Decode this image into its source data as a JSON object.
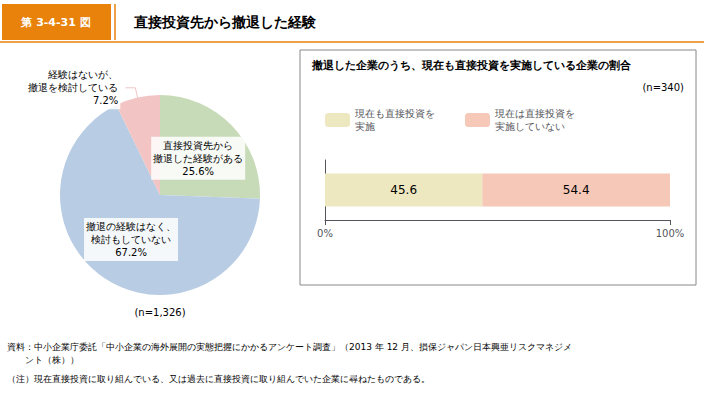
{
  "chart_data": [
    {
      "type": "pie",
      "title": "直接投資先から撤退した経験",
      "categories": [
        "直接投資先から\n撤退した経験がある",
        "撤退の経験はなく、\n検討もしていない",
        "経験はないが、\n撤退を検討している"
      ],
      "values": [
        25.6,
        67.2,
        7.2
      ],
      "value_labels": [
        "25.6%",
        "67.2%",
        "7.2%"
      ],
      "colors": [
        "#c8dbb8",
        "#b8cce4",
        "#f2c4c4"
      ],
      "data_labels": true,
      "annotations": [
        "第 3-4-31 図",
        "(n=1,326)",
        "資料：中小企業庁委託「中小企業の海外展開の実態把握にかかるアンケート調査」（2013 年 12 月、損保ジャパン日本興亜リスクマネジメ\n　　ント（株））",
        "（注）現在直接投資に取り組んでいる、又は過去に直接投資に取り組んでいた企業に尋ねたものである。"
      ]
    },
    {
      "type": "bar",
      "title": "撤退した企業のうち、現在も直接投資を実施している企業の割合",
      "orientation": "horizontal",
      "stacked": true,
      "categories": [
        null
      ],
      "series": [
        {
          "name": "現在も直接投資を\n実施",
          "color": "#eee8c0",
          "values": [
            45.6
          ]
        },
        {
          "name": "現在は直接投資を\n実施していない",
          "color": "#f5c8b8",
          "values": [
            54.4
          ]
        }
      ],
      "xlim": [
        0,
        100
      ],
      "xticks": [
        {
          "value": 0,
          "label": "0%"
        },
        {
          "value": 100,
          "label": "100%"
        }
      ],
      "tick_labels": "x",
      "data_labels": true,
      "grid": false,
      "legend": "top",
      "annotations": [
        "(n=340)"
      ]
    }
  ]
}
